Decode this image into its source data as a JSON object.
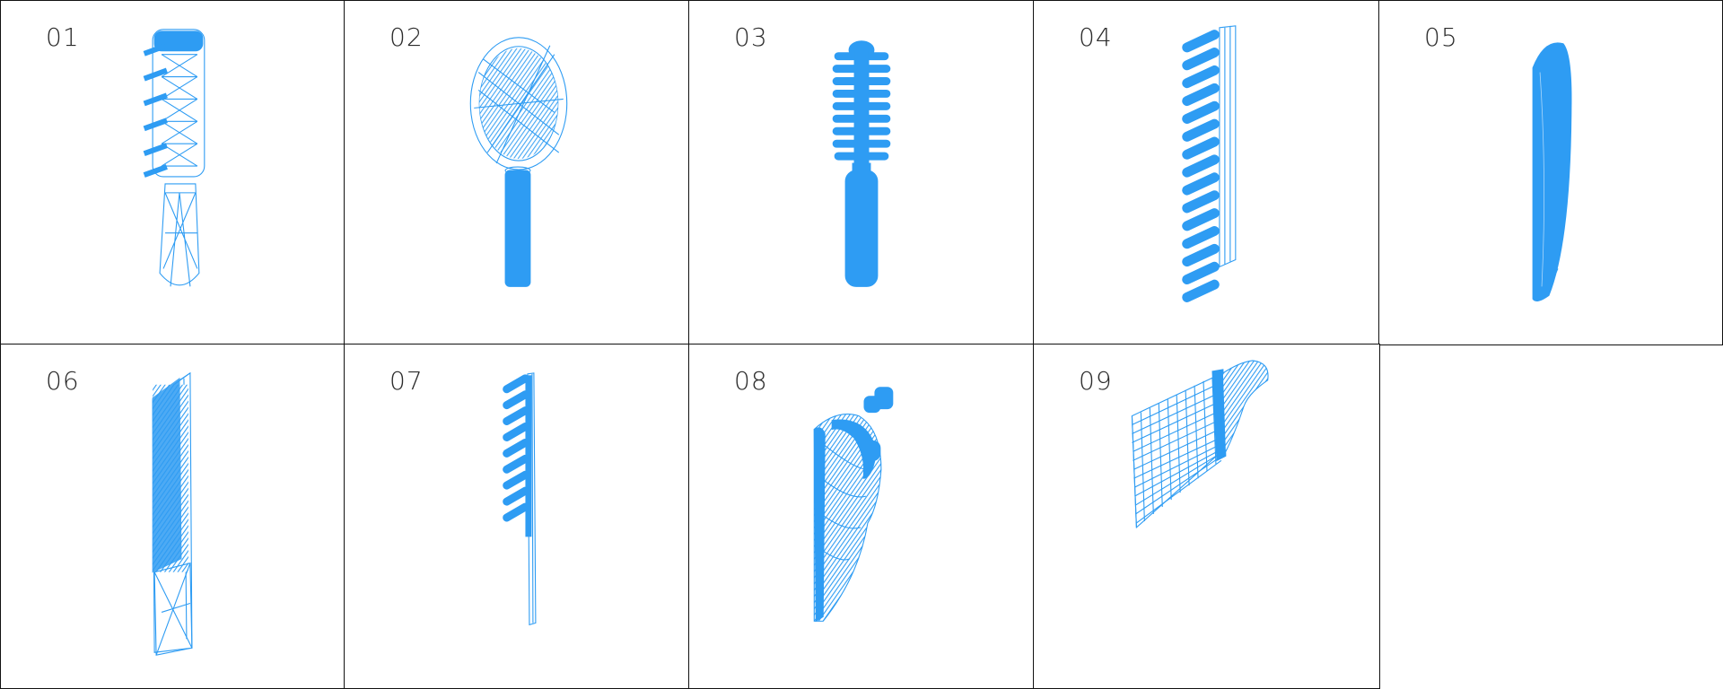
{
  "accent_color": "#2e9cf3",
  "border_color": "#111111",
  "cells": [
    {
      "label": "01",
      "object_icon": "vented-brush-icon"
    },
    {
      "label": "02",
      "object_icon": "paddle-brush-icon"
    },
    {
      "label": "03",
      "object_icon": "round-brush-icon"
    },
    {
      "label": "04",
      "object_icon": "wide-tooth-comb-icon"
    },
    {
      "label": "05",
      "object_icon": "curved-pad-icon"
    },
    {
      "label": "06",
      "object_icon": "fine-tooth-comb-icon"
    },
    {
      "label": "07",
      "object_icon": "narrow-comb-icon"
    },
    {
      "label": "08",
      "object_icon": "curved-comb-icon"
    },
    {
      "label": "09",
      "object_icon": "hooked-comb-icon"
    }
  ]
}
